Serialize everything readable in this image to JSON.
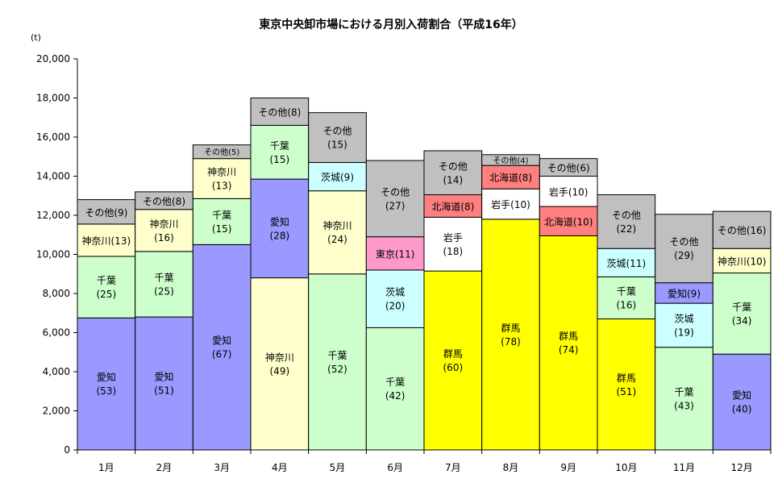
{
  "chart_data": {
    "type": "bar",
    "stacked": true,
    "title": "東京中央卸市場における月別入荷割合（平成16年）",
    "yunit": "(t)",
    "ylim": [
      0,
      20000
    ],
    "yticks": [
      "0",
      "2,000",
      "4,000",
      "6,000",
      "8,000",
      "10,000",
      "12,000",
      "14,000",
      "16,000",
      "18,000",
      "20,000"
    ],
    "categories": [
      "1月",
      "2月",
      "3月",
      "4月",
      "5月",
      "6月",
      "7月",
      "8月",
      "9月",
      "10月",
      "11月",
      "12月"
    ],
    "grid": false,
    "legend": "none",
    "colors": {
      "愛知": "#9999ff",
      "千葉": "#ccffcc",
      "神奈川": "#ffffcc",
      "その他": "#c0c0c0",
      "茨城": "#ccffff",
      "東京": "#ff99cc",
      "群馬": "#ffff00",
      "岩手": "#ffffff",
      "北海道": "#ff8080"
    },
    "bars": [
      {
        "month": "1月",
        "segments": [
          {
            "name": "愛知",
            "label": "愛知",
            "pct": "(53)",
            "value": 6750
          },
          {
            "name": "千葉",
            "label": "千葉",
            "pct": "(25)",
            "value": 3150
          },
          {
            "name": "神奈川",
            "label": "神奈川(13)",
            "value": 1650
          },
          {
            "name": "その他",
            "label": "その他(9)",
            "value": 1250
          }
        ]
      },
      {
        "month": "2月",
        "segments": [
          {
            "name": "愛知",
            "label": "愛知",
            "pct": "(51)",
            "value": 6800
          },
          {
            "name": "千葉",
            "label": "千葉",
            "pct": "(25)",
            "value": 3350
          },
          {
            "name": "神奈川",
            "label": "神奈川",
            "pct": "(16)",
            "value": 2150
          },
          {
            "name": "その他",
            "label": "その他(8)",
            "value": 900
          }
        ]
      },
      {
        "month": "3月",
        "segments": [
          {
            "name": "愛知",
            "label": "愛知",
            "pct": "(67)",
            "value": 10500
          },
          {
            "name": "千葉",
            "label": "千葉",
            "pct": "(15)",
            "value": 2350
          },
          {
            "name": "神奈川",
            "label": "神奈川",
            "pct": "(13)",
            "value": 2050
          },
          {
            "name": "その他",
            "label": "その他(5)",
            "value": 700
          }
        ]
      },
      {
        "month": "4月",
        "segments": [
          {
            "name": "神奈川",
            "label": "神奈川",
            "pct": "(49)",
            "value": 8800
          },
          {
            "name": "愛知",
            "label": "愛知",
            "pct": "(28)",
            "value": 5050
          },
          {
            "name": "千葉",
            "label": "千葉",
            "pct": "(15)",
            "value": 2750
          },
          {
            "name": "その他",
            "label": "その他(8)",
            "value": 1400
          }
        ]
      },
      {
        "month": "5月",
        "segments": [
          {
            "name": "千葉",
            "label": "千葉",
            "pct": "(52)",
            "value": 9000
          },
          {
            "name": "神奈川",
            "label": "神奈川",
            "pct": "(24)",
            "value": 4250
          },
          {
            "name": "茨城",
            "label": "茨城(9)",
            "value": 1450
          },
          {
            "name": "その他",
            "label": "その他",
            "pct": "(15)",
            "value": 2550
          }
        ]
      },
      {
        "month": "6月",
        "segments": [
          {
            "name": "千葉",
            "label": "千葉",
            "pct": "(42)",
            "value": 6250
          },
          {
            "name": "茨城",
            "label": "茨城",
            "pct": "(20)",
            "value": 2950
          },
          {
            "name": "東京",
            "label": "東京(11)",
            "value": 1700
          },
          {
            "name": "その他",
            "label": "その他",
            "pct": "(27)",
            "value": 3900
          }
        ]
      },
      {
        "month": "7月",
        "segments": [
          {
            "name": "群馬",
            "label": "群馬",
            "pct": "(60)",
            "value": 9150
          },
          {
            "name": "岩手",
            "label": "岩手",
            "pct": "(18)",
            "value": 2750
          },
          {
            "name": "北海道",
            "label": "北海道(8)",
            "value": 1150
          },
          {
            "name": "その他",
            "label": "その他",
            "pct": "(14)",
            "value": 2250
          }
        ]
      },
      {
        "month": "8月",
        "segments": [
          {
            "name": "群馬",
            "label": "群馬",
            "pct": "(78)",
            "value": 11800
          },
          {
            "name": "岩手",
            "label": "岩手(10)",
            "value": 1550
          },
          {
            "name": "北海道",
            "label": "北海道(8)",
            "value": 1200
          },
          {
            "name": "その他",
            "label": "その他(4)",
            "value": 550
          }
        ]
      },
      {
        "month": "9月",
        "segments": [
          {
            "name": "群馬",
            "label": "群馬",
            "pct": "(74)",
            "value": 10950
          },
          {
            "name": "北海道",
            "label": "北海道(10)",
            "value": 1500
          },
          {
            "name": "岩手",
            "label": "岩手(10)",
            "value": 1550
          },
          {
            "name": "その他",
            "label": "その他(6)",
            "value": 900
          }
        ]
      },
      {
        "month": "10月",
        "segments": [
          {
            "name": "群馬",
            "label": "群馬",
            "pct": "(51)",
            "value": 6700
          },
          {
            "name": "千葉",
            "label": "千葉",
            "pct": "(16)",
            "value": 2150
          },
          {
            "name": "茨城",
            "label": "茨城(11)",
            "value": 1450
          },
          {
            "name": "その他",
            "label": "その他",
            "pct": "(22)",
            "value": 2750
          }
        ]
      },
      {
        "month": "11月",
        "segments": [
          {
            "name": "千葉",
            "label": "千葉",
            "pct": "(43)",
            "value": 5250
          },
          {
            "name": "茨城",
            "label": "茨城",
            "pct": "(19)",
            "value": 2250
          },
          {
            "name": "愛知",
            "label": "愛知(9)",
            "value": 1050
          },
          {
            "name": "その他",
            "label": "その他",
            "pct": "(29)",
            "value": 3500
          }
        ]
      },
      {
        "month": "12月",
        "segments": [
          {
            "name": "愛知",
            "label": "愛知",
            "pct": "(40)",
            "value": 4900
          },
          {
            "name": "千葉",
            "label": "千葉",
            "pct": "(34)",
            "value": 4150
          },
          {
            "name": "神奈川",
            "label": "神奈川(10)",
            "value": 1250
          },
          {
            "name": "その他",
            "label": "その他(16)",
            "value": 1900
          }
        ]
      }
    ]
  }
}
